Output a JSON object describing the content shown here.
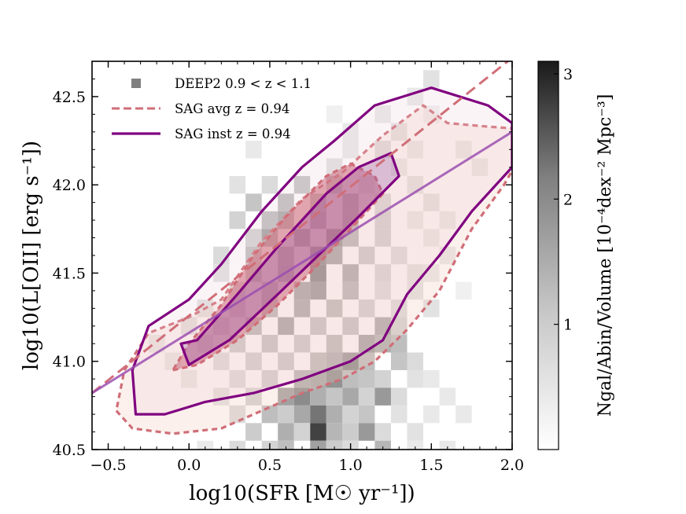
{
  "chart_data": {
    "type": "heatmap",
    "xlabel": "log10(SFR [M☉ yr⁻¹])",
    "ylabel": "log10(L[OII] [erg s⁻¹])",
    "xlim": [
      -0.6,
      2.0
    ],
    "ylim": [
      40.5,
      42.7
    ],
    "xticks": [
      "−0.5",
      "0.0",
      "0.5",
      "1.0",
      "1.5",
      "2.0"
    ],
    "yticks": [
      "40.5",
      "41.0",
      "41.5",
      "42.0",
      "42.5"
    ],
    "colorbar": {
      "label": "Ngal/Abin/Volume [10⁻⁴dex⁻² Mpc⁻³]",
      "range": [
        0,
        3.1
      ],
      "ticks": [
        "1",
        "2",
        "3"
      ],
      "colormap": "greys"
    },
    "legend": {
      "placement": "top-left",
      "entries": [
        {
          "label": "DEEP2 0.9 < z < 1.1",
          "marker": "square",
          "color": "#7f7f7f"
        },
        {
          "label": "SAG avg z = 0.94",
          "line": "dashed",
          "color": "#d06e78"
        },
        {
          "label": "SAG inst z = 0.94",
          "line": "solid",
          "color": "#800080"
        }
      ]
    },
    "heatmap": {
      "bin_size": [
        0.1,
        0.1
      ],
      "cells": [
        [
          1.5,
          42.6,
          0.4
        ],
        [
          1.4,
          42.5,
          0.3
        ],
        [
          0.9,
          42.4,
          0.2
        ],
        [
          1.2,
          42.4,
          0.3
        ],
        [
          1.5,
          42.4,
          0.2
        ],
        [
          1.0,
          42.3,
          0.3
        ],
        [
          1.3,
          42.3,
          0.4
        ],
        [
          0.4,
          42.2,
          0.3
        ],
        [
          1.0,
          42.2,
          0.3
        ],
        [
          1.2,
          42.2,
          0.5
        ],
        [
          1.4,
          42.2,
          0.3
        ],
        [
          1.7,
          42.2,
          0.3
        ],
        [
          1.8,
          42.1,
          0.3
        ],
        [
          0.9,
          42.1,
          0.4
        ],
        [
          1.3,
          42.1,
          0.3
        ],
        [
          0.3,
          42.0,
          0.4
        ],
        [
          0.5,
          42.0,
          0.5
        ],
        [
          0.7,
          42.0,
          0.8
        ],
        [
          0.9,
          42.0,
          1.0
        ],
        [
          1.1,
          42.0,
          0.4
        ],
        [
          1.4,
          42.0,
          0.4
        ],
        [
          0.4,
          41.9,
          0.8
        ],
        [
          0.6,
          41.9,
          0.9
        ],
        [
          0.8,
          41.9,
          1.1
        ],
        [
          1.0,
          41.9,
          1.2
        ],
        [
          1.2,
          41.9,
          0.6
        ],
        [
          1.5,
          41.9,
          0.4
        ],
        [
          0.3,
          41.8,
          0.6
        ],
        [
          0.5,
          41.8,
          0.9
        ],
        [
          0.6,
          41.8,
          1.2
        ],
        [
          0.8,
          41.8,
          1.4
        ],
        [
          1.0,
          41.8,
          1.2
        ],
        [
          1.2,
          41.8,
          0.7
        ],
        [
          1.4,
          41.8,
          0.3
        ],
        [
          1.6,
          41.8,
          0.3
        ],
        [
          0.4,
          41.7,
          0.6
        ],
        [
          0.5,
          41.7,
          1.3
        ],
        [
          0.7,
          41.7,
          1.5
        ],
        [
          0.9,
          41.7,
          1.7
        ],
        [
          1.0,
          41.7,
          1.1
        ],
        [
          1.2,
          41.7,
          0.7
        ],
        [
          1.5,
          41.7,
          0.3
        ],
        [
          0.2,
          41.6,
          0.5
        ],
        [
          0.4,
          41.6,
          0.9
        ],
        [
          0.6,
          41.6,
          1.2
        ],
        [
          0.8,
          41.6,
          1.8
        ],
        [
          0.9,
          41.6,
          1.4
        ],
        [
          1.1,
          41.6,
          0.8
        ],
        [
          1.3,
          41.6,
          0.5
        ],
        [
          1.6,
          41.6,
          0.3
        ],
        [
          0.2,
          41.5,
          0.4
        ],
        [
          0.4,
          41.5,
          1.0
        ],
        [
          0.6,
          41.5,
          1.3
        ],
        [
          0.8,
          41.5,
          1.9
        ],
        [
          1.0,
          41.5,
          1.3
        ],
        [
          1.2,
          41.5,
          0.6
        ],
        [
          1.4,
          41.5,
          0.4
        ],
        [
          1.5,
          41.5,
          0.3
        ],
        [
          0.3,
          41.4,
          0.6
        ],
        [
          0.5,
          41.4,
          1.0
        ],
        [
          0.7,
          41.4,
          1.4
        ],
        [
          0.8,
          41.4,
          1.6
        ],
        [
          1.0,
          41.4,
          1.1
        ],
        [
          1.2,
          41.4,
          0.5
        ],
        [
          1.4,
          41.4,
          0.4
        ],
        [
          1.7,
          41.4,
          0.2
        ],
        [
          0.1,
          41.3,
          0.4
        ],
        [
          0.3,
          41.3,
          0.7
        ],
        [
          0.5,
          41.3,
          1.1
        ],
        [
          0.7,
          41.3,
          1.3
        ],
        [
          0.9,
          41.3,
          1.0
        ],
        [
          1.1,
          41.3,
          0.7
        ],
        [
          1.3,
          41.3,
          0.5
        ],
        [
          1.5,
          41.3,
          0.4
        ],
        [
          0.0,
          41.2,
          0.4
        ],
        [
          0.2,
          41.2,
          0.6
        ],
        [
          0.4,
          41.2,
          1.1
        ],
        [
          0.6,
          41.2,
          1.4
        ],
        [
          0.8,
          41.2,
          0.9
        ],
        [
          1.0,
          41.2,
          0.9
        ],
        [
          1.2,
          41.2,
          1.3
        ],
        [
          1.3,
          41.2,
          0.6
        ],
        [
          -0.2,
          41.1,
          0.3
        ],
        [
          0.1,
          41.1,
          0.5
        ],
        [
          0.3,
          41.1,
          0.8
        ],
        [
          0.5,
          41.1,
          0.9
        ],
        [
          0.7,
          41.1,
          0.8
        ],
        [
          0.9,
          41.1,
          1.0
        ],
        [
          1.1,
          41.1,
          1.4
        ],
        [
          1.2,
          41.1,
          1.1
        ],
        [
          1.3,
          41.1,
          0.9
        ],
        [
          -0.1,
          41.0,
          0.3
        ],
        [
          0.2,
          41.0,
          0.5
        ],
        [
          0.4,
          41.0,
          0.7
        ],
        [
          0.6,
          41.0,
          0.8
        ],
        [
          0.8,
          41.0,
          1.0
        ],
        [
          0.9,
          41.0,
          1.2
        ],
        [
          1.0,
          41.0,
          1.6
        ],
        [
          1.1,
          41.0,
          0.9
        ],
        [
          1.3,
          41.0,
          0.8
        ],
        [
          1.4,
          41.0,
          0.5
        ],
        [
          0.0,
          40.9,
          0.3
        ],
        [
          0.3,
          40.9,
          0.5
        ],
        [
          0.5,
          40.9,
          0.7
        ],
        [
          0.7,
          40.9,
          1.1
        ],
        [
          0.8,
          40.9,
          1.2
        ],
        [
          0.9,
          40.9,
          1.5
        ],
        [
          1.0,
          40.9,
          0.9
        ],
        [
          1.1,
          40.9,
          0.8
        ],
        [
          1.2,
          40.9,
          0.6
        ],
        [
          1.4,
          40.9,
          0.4
        ],
        [
          1.5,
          40.9,
          0.3
        ],
        [
          0.2,
          40.8,
          0.4
        ],
        [
          0.4,
          40.8,
          0.6
        ],
        [
          0.6,
          40.8,
          1.3
        ],
        [
          0.7,
          40.8,
          1.6
        ],
        [
          0.8,
          40.8,
          1.1
        ],
        [
          0.9,
          40.8,
          0.8
        ],
        [
          1.0,
          40.8,
          1.2
        ],
        [
          1.1,
          40.8,
          0.6
        ],
        [
          1.2,
          40.8,
          1.4
        ],
        [
          1.3,
          40.8,
          0.5
        ],
        [
          1.6,
          40.8,
          0.3
        ],
        [
          0.3,
          40.7,
          0.5
        ],
        [
          0.5,
          40.7,
          0.9
        ],
        [
          0.6,
          40.7,
          0.7
        ],
        [
          0.7,
          40.7,
          1.2
        ],
        [
          0.8,
          40.7,
          1.9
        ],
        [
          0.9,
          40.7,
          1.1
        ],
        [
          1.0,
          40.7,
          0.6
        ],
        [
          1.1,
          40.7,
          0.8
        ],
        [
          1.3,
          40.7,
          0.4
        ],
        [
          1.5,
          40.7,
          0.3
        ],
        [
          1.7,
          40.7,
          0.3
        ],
        [
          0.4,
          40.6,
          0.7
        ],
        [
          0.6,
          40.6,
          1.1
        ],
        [
          0.7,
          40.6,
          0.6
        ],
        [
          0.8,
          40.6,
          2.6
        ],
        [
          0.9,
          40.6,
          1.0
        ],
        [
          1.0,
          40.6,
          0.7
        ],
        [
          1.1,
          40.6,
          1.4
        ],
        [
          1.2,
          40.6,
          0.5
        ],
        [
          1.4,
          40.6,
          0.4
        ],
        [
          0.1,
          40.5,
          0.3
        ],
        [
          0.3,
          40.5,
          0.5
        ],
        [
          0.5,
          40.5,
          0.6
        ],
        [
          0.6,
          40.5,
          0.9
        ],
        [
          0.8,
          40.5,
          1.3
        ],
        [
          0.9,
          40.5,
          0.7
        ],
        [
          1.0,
          40.5,
          0.5
        ],
        [
          1.2,
          40.5,
          1.0
        ],
        [
          1.4,
          40.5,
          0.3
        ],
        [
          1.6,
          40.5,
          0.3
        ]
      ]
    },
    "series": [
      {
        "kind": "outer-contour",
        "line": "dashed",
        "color": "#d06e78",
        "points": [
          [
            -0.45,
            40.72
          ],
          [
            -0.35,
            40.62
          ],
          [
            -0.1,
            40.59
          ],
          [
            0.2,
            40.62
          ],
          [
            0.45,
            40.72
          ],
          [
            0.7,
            40.82
          ],
          [
            0.95,
            40.9
          ],
          [
            1.15,
            41.0
          ],
          [
            1.35,
            41.18
          ],
          [
            1.55,
            41.4
          ],
          [
            1.75,
            41.75
          ],
          [
            1.95,
            42.0
          ],
          [
            2.0,
            42.08
          ],
          [
            2.0,
            42.32
          ],
          [
            1.85,
            42.33
          ],
          [
            1.6,
            42.35
          ],
          [
            1.45,
            42.45
          ],
          [
            1.2,
            42.28
          ],
          [
            0.95,
            42.07
          ],
          [
            0.7,
            41.92
          ],
          [
            0.45,
            41.68
          ],
          [
            0.2,
            41.35
          ],
          [
            0.0,
            41.25
          ],
          [
            -0.25,
            41.16
          ],
          [
            -0.4,
            40.95
          ],
          [
            -0.45,
            40.72
          ]
        ]
      },
      {
        "kind": "outer-contour",
        "line": "solid",
        "color": "#800080",
        "points": [
          [
            -0.33,
            40.7
          ],
          [
            -0.15,
            40.7
          ],
          [
            0.1,
            40.77
          ],
          [
            0.4,
            40.82
          ],
          [
            0.7,
            40.9
          ],
          [
            1.0,
            41.0
          ],
          [
            1.2,
            41.12
          ],
          [
            1.35,
            41.38
          ],
          [
            1.55,
            41.6
          ],
          [
            1.75,
            41.85
          ],
          [
            1.95,
            42.05
          ],
          [
            2.0,
            42.1
          ],
          [
            2.0,
            42.35
          ],
          [
            1.85,
            42.45
          ],
          [
            1.5,
            42.55
          ],
          [
            1.15,
            42.45
          ],
          [
            0.9,
            42.25
          ],
          [
            0.7,
            42.1
          ],
          [
            0.45,
            41.85
          ],
          [
            0.2,
            41.55
          ],
          [
            0.0,
            41.35
          ],
          [
            -0.25,
            41.2
          ],
          [
            -0.35,
            40.95
          ],
          [
            -0.33,
            40.7
          ]
        ]
      },
      {
        "kind": "inner-contour",
        "line": "dashed",
        "color": "#d06e78",
        "points": [
          [
            -0.1,
            40.95
          ],
          [
            0.05,
            40.98
          ],
          [
            0.3,
            41.12
          ],
          [
            0.55,
            41.32
          ],
          [
            0.8,
            41.55
          ],
          [
            1.05,
            41.8
          ],
          [
            1.2,
            41.95
          ],
          [
            1.15,
            42.05
          ],
          [
            1.0,
            42.12
          ],
          [
            0.85,
            42.05
          ],
          [
            0.6,
            41.82
          ],
          [
            0.4,
            41.6
          ],
          [
            0.2,
            41.32
          ],
          [
            0.0,
            41.1
          ],
          [
            -0.1,
            40.95
          ]
        ]
      },
      {
        "kind": "inner-contour",
        "line": "solid",
        "color": "#800080",
        "points": [
          [
            -0.05,
            41.1
          ],
          [
            0.0,
            40.98
          ],
          [
            0.25,
            41.12
          ],
          [
            0.55,
            41.38
          ],
          [
            0.8,
            41.6
          ],
          [
            1.05,
            41.82
          ],
          [
            1.3,
            42.05
          ],
          [
            1.25,
            42.18
          ],
          [
            1.05,
            42.1
          ],
          [
            0.85,
            41.95
          ],
          [
            0.55,
            41.65
          ],
          [
            0.3,
            41.38
          ],
          [
            0.05,
            41.12
          ],
          [
            -0.05,
            41.1
          ]
        ]
      },
      {
        "kind": "fit-line",
        "line": "dashed",
        "color": "#d06e78",
        "points": [
          [
            -0.6,
            40.82
          ],
          [
            2.0,
            42.72
          ]
        ]
      },
      {
        "kind": "fit-line",
        "line": "solid",
        "color": "#9b4fb0",
        "points": [
          [
            -0.6,
            40.82
          ],
          [
            2.0,
            42.3
          ]
        ]
      }
    ]
  }
}
